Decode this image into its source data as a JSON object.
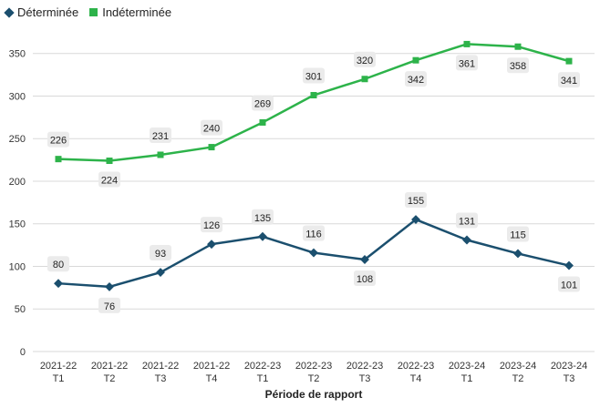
{
  "chart_data": {
    "type": "line",
    "title": "",
    "xlabel": "Période de rapport",
    "ylabel": "",
    "ylim": [
      0,
      370
    ],
    "yticks": [
      0,
      50,
      100,
      150,
      200,
      250,
      300,
      350
    ],
    "grid": true,
    "legend_position": "top-left",
    "categories": [
      [
        "2021-22",
        "T1"
      ],
      [
        "2021-22",
        "T2"
      ],
      [
        "2021-22",
        "T3"
      ],
      [
        "2021-22",
        "T4"
      ],
      [
        "2022-23",
        "T1"
      ],
      [
        "2022-23",
        "T2"
      ],
      [
        "2022-23",
        "T3"
      ],
      [
        "2022-23",
        "T4"
      ],
      [
        "2023-24",
        "T1"
      ],
      [
        "2023-24",
        "T2"
      ],
      [
        "2023-24",
        "T3"
      ]
    ],
    "series": [
      {
        "name": "Déterminée",
        "color": "#1b4f6e",
        "marker": "diamond",
        "values": [
          80,
          76,
          93,
          126,
          135,
          116,
          108,
          155,
          131,
          115,
          101
        ],
        "label_pos": [
          "above",
          "below",
          "above",
          "above",
          "above",
          "above",
          "below",
          "above",
          "above",
          "above",
          "below"
        ]
      },
      {
        "name": "Indéterminée",
        "color": "#2db34a",
        "marker": "square",
        "values": [
          226,
          224,
          231,
          240,
          269,
          301,
          320,
          342,
          361,
          358,
          341
        ],
        "label_pos": [
          "above",
          "below",
          "above",
          "above",
          "above",
          "above",
          "above",
          "below",
          "below",
          "below",
          "below"
        ]
      }
    ]
  }
}
